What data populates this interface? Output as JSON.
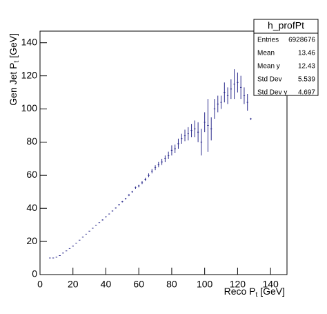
{
  "chart_data": {
    "type": "profile",
    "xlabel": [
      "Reco P",
      "t",
      " [GeV]"
    ],
    "ylabel": [
      "Gen Jet P",
      "t",
      " [GeV]"
    ],
    "x": [
      6,
      8,
      10,
      12,
      14,
      16,
      18,
      20,
      22,
      24,
      26,
      28,
      30,
      32,
      34,
      36,
      38,
      40,
      42,
      44,
      46,
      48,
      50,
      52,
      54,
      56,
      58,
      60,
      62,
      64,
      66,
      68,
      70,
      72,
      74,
      76,
      78,
      80,
      82,
      84,
      86,
      88,
      90,
      92,
      94,
      96,
      98,
      100,
      102,
      104,
      106,
      108,
      110,
      112,
      114,
      116,
      118,
      120,
      122,
      124,
      126,
      128
    ],
    "values": [
      10,
      10,
      10.5,
      11.5,
      13,
      14.3,
      15.7,
      17.2,
      19,
      20.8,
      22.6,
      24.4,
      26.2,
      28,
      29.8,
      31.4,
      33,
      34.8,
      36.6,
      38.4,
      40.2,
      42.2,
      44,
      45.8,
      48,
      50,
      52.5,
      53.5,
      55.5,
      57.5,
      60,
      62.5,
      64.5,
      66.5,
      68,
      70,
      72,
      75,
      76,
      79,
      82,
      84,
      85,
      87,
      88,
      86,
      80,
      92,
      90,
      88,
      100,
      103,
      104,
      110,
      108,
      112,
      115,
      116,
      113,
      108,
      104,
      94
    ],
    "errors": [
      0.2,
      0.2,
      0.2,
      0.2,
      0.2,
      0.2,
      0.2,
      0.2,
      0.2,
      0.2,
      0.2,
      0.2,
      0.2,
      0.2,
      0.2,
      0.2,
      0.3,
      0.3,
      0.3,
      0.3,
      0.3,
      0.4,
      0.4,
      0.5,
      0.5,
      0.6,
      0.7,
      0.8,
      0.9,
      1,
      1.2,
      1.3,
      1.5,
      1.6,
      1.8,
      2,
      2.2,
      3,
      2.5,
      3,
      3,
      3.5,
      4,
      4,
      5,
      6,
      8,
      6,
      16,
      7,
      6,
      5,
      4,
      6,
      5,
      6,
      9,
      6,
      7,
      5,
      5,
      0.5
    ],
    "color": "#2a2a8c",
    "xlim": [
      0,
      150
    ],
    "ylim": [
      0,
      147
    ],
    "xticks": [
      0,
      20,
      40,
      60,
      80,
      100,
      120,
      140
    ],
    "yticks": [
      0,
      20,
      40,
      60,
      80,
      100,
      120,
      140
    ],
    "stats": {
      "title": "h_profPt",
      "rows": [
        [
          "Entries",
          6928676
        ],
        [
          "Mean",
          13.46
        ],
        [
          "Mean y",
          12.43
        ],
        [
          "Std Dev",
          5.539
        ],
        [
          "Std Dev y",
          4.697
        ]
      ]
    }
  }
}
